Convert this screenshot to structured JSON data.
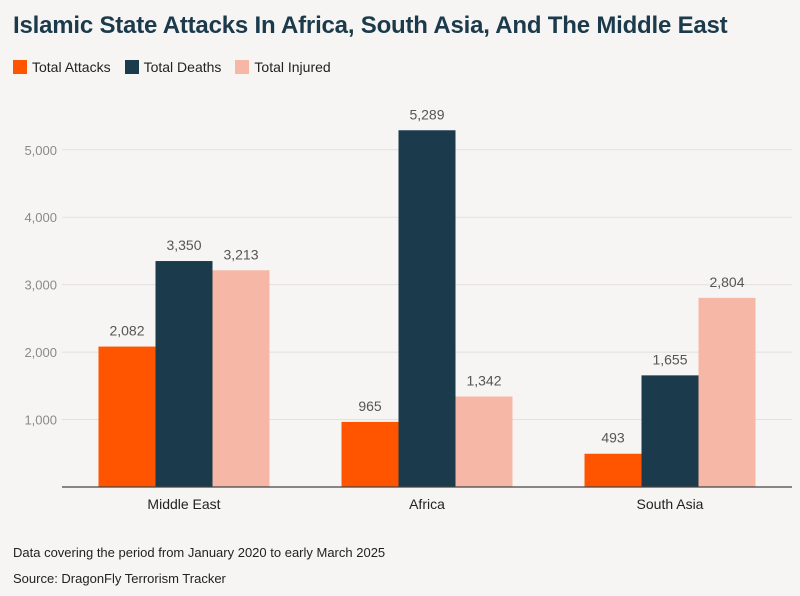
{
  "chart_data": {
    "type": "bar",
    "title": "Islamic State Attacks In Africa, South Asia, And The Middle East",
    "categories": [
      "Middle East",
      "Africa",
      "South Asia"
    ],
    "series": [
      {
        "name": "Total Attacks",
        "color": "#ff5500",
        "values": [
          2082,
          965,
          493
        ]
      },
      {
        "name": "Total Deaths",
        "color": "#1b3a4b",
        "values": [
          3350,
          5289,
          1655
        ]
      },
      {
        "name": "Total Injured",
        "color": "#f6b7a7",
        "values": [
          3213,
          1342,
          2804
        ]
      }
    ],
    "value_labels": [
      [
        "2,082",
        "965",
        "493"
      ],
      [
        "3,350",
        "5,289",
        "1,655"
      ],
      [
        "3,213",
        "1,342",
        "2,804"
      ]
    ],
    "yticks": [
      "1,000",
      "2,000",
      "3,000",
      "4,000",
      "5,000"
    ],
    "ytick_values": [
      1000,
      2000,
      3000,
      4000,
      5000
    ],
    "ylim": [
      0,
      5500
    ],
    "grid": true,
    "legend_position": "top-left"
  },
  "footer": {
    "note": "Data covering the period from January 2020 to early March 2025",
    "source": "Source: DragonFly Terrorism Tracker"
  }
}
